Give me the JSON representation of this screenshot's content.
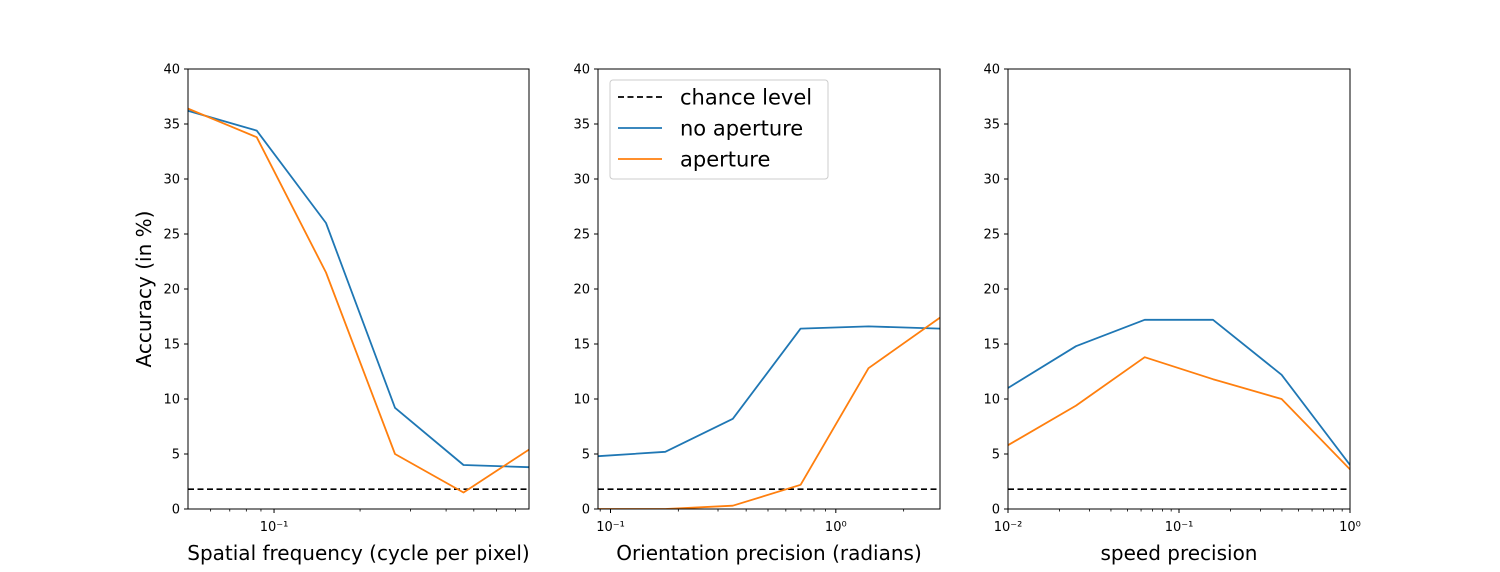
{
  "chart_data": [
    {
      "type": "line",
      "xscale": "log",
      "xlim": [
        0.05,
        0.78
      ],
      "ylim": [
        0,
        40
      ],
      "xlabel": "Spatial frequency (cycle per pixel)",
      "ylabel": "Accuracy (in %)",
      "xticks": [
        {
          "value": 0.1,
          "label": "10⁻¹"
        }
      ],
      "yticks": [
        0,
        5,
        10,
        15,
        20,
        25,
        30,
        35,
        40
      ],
      "series": [
        {
          "name": "chance level",
          "color": "#000000",
          "dashed": true,
          "x": [
            0.05,
            0.78
          ],
          "y": [
            1.8,
            1.8
          ]
        },
        {
          "name": "no aperture",
          "color": "#1f77b4",
          "x": [
            0.05,
            0.087,
            0.152,
            0.265,
            0.46,
            0.78
          ],
          "y": [
            36.2,
            34.4,
            26.0,
            9.2,
            4.0,
            3.8
          ]
        },
        {
          "name": "aperture",
          "color": "#ff7f0e",
          "x": [
            0.05,
            0.087,
            0.152,
            0.265,
            0.46,
            0.78
          ],
          "y": [
            36.4,
            33.8,
            21.5,
            5.0,
            1.5,
            5.4
          ]
        }
      ]
    },
    {
      "type": "line",
      "xscale": "log",
      "xlim": [
        0.088,
        2.9
      ],
      "ylim": [
        0,
        40
      ],
      "xlabel": "Orientation precision (radians)",
      "ylabel": "",
      "xticks": [
        {
          "value": 0.1,
          "label": "10⁻¹"
        },
        {
          "value": 1,
          "label": "10⁰"
        }
      ],
      "yticks": [
        0,
        5,
        10,
        15,
        20,
        25,
        30,
        35,
        40
      ],
      "series": [
        {
          "name": "chance level",
          "color": "#000000",
          "dashed": true,
          "x": [
            0.088,
            2.9
          ],
          "y": [
            1.8,
            1.8
          ]
        },
        {
          "name": "no aperture",
          "color": "#1f77b4",
          "x": [
            0.088,
            0.175,
            0.349,
            0.698,
            1.396,
            2.9
          ],
          "y": [
            4.8,
            5.2,
            8.2,
            16.4,
            16.6,
            16.4
          ]
        },
        {
          "name": "aperture",
          "color": "#ff7f0e",
          "x": [
            0.088,
            0.175,
            0.349,
            0.698,
            1.396,
            2.9
          ],
          "y": [
            0.0,
            0.0,
            0.3,
            2.2,
            12.8,
            17.4
          ]
        }
      ]
    },
    {
      "type": "line",
      "xscale": "log",
      "xlim": [
        0.01,
        1.0
      ],
      "ylim": [
        0,
        40
      ],
      "xlabel": "speed precision",
      "ylabel": "",
      "xticks": [
        {
          "value": 0.01,
          "label": "10⁻²"
        },
        {
          "value": 0.1,
          "label": "10⁻¹"
        },
        {
          "value": 1,
          "label": "10⁰"
        }
      ],
      "yticks": [
        0,
        5,
        10,
        15,
        20,
        25,
        30,
        35,
        40
      ],
      "series": [
        {
          "name": "chance level",
          "color": "#000000",
          "dashed": true,
          "x": [
            0.01,
            1.0
          ],
          "y": [
            1.8,
            1.8
          ]
        },
        {
          "name": "no aperture",
          "color": "#1f77b4",
          "x": [
            0.01,
            0.025,
            0.063,
            0.158,
            0.398,
            1.0
          ],
          "y": [
            11.0,
            14.8,
            17.2,
            17.2,
            12.2,
            4.0
          ]
        },
        {
          "name": "aperture",
          "color": "#ff7f0e",
          "x": [
            0.01,
            0.025,
            0.063,
            0.158,
            0.398,
            1.0
          ],
          "y": [
            5.8,
            9.4,
            13.8,
            11.8,
            10.0,
            3.6
          ]
        }
      ]
    }
  ],
  "legend": {
    "placement": "top-left of middle panel",
    "entries": [
      {
        "label": "chance level",
        "color": "#000000",
        "dashed": true
      },
      {
        "label": "no aperture",
        "color": "#1f77b4",
        "dashed": false
      },
      {
        "label": "aperture",
        "color": "#ff7f0e",
        "dashed": false
      }
    ]
  }
}
